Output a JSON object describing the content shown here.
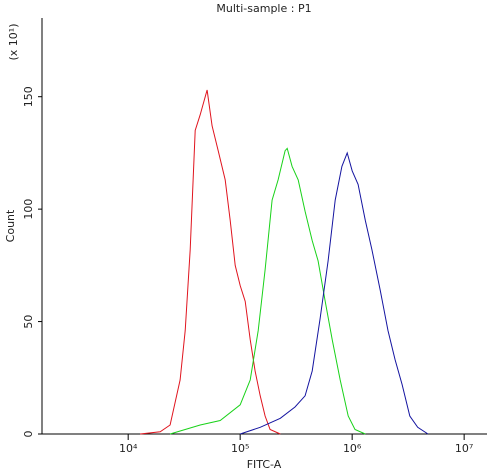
{
  "chart_data": {
    "type": "line",
    "title": "Multi-sample : P1",
    "y_multiplier": "(x 10¹)",
    "xlabel": "FITC-A",
    "ylabel": "Count",
    "xscale": "log",
    "xlim": [
      1700,
      16000000
    ],
    "ylim": [
      0,
      185
    ],
    "xticks": [
      {
        "value": 10000,
        "label": "10⁴"
      },
      {
        "value": 100000,
        "label": "10⁵"
      },
      {
        "value": 1000000,
        "label": "10⁶"
      },
      {
        "value": 10000000,
        "label": "10⁷"
      }
    ],
    "yticks": [
      0,
      50,
      100,
      150
    ],
    "series": [
      {
        "color": "#e0141e",
        "x": [
          12800,
          19300,
          23700,
          29100,
          32300,
          35800,
          39700,
          44000,
          50700,
          56200,
          63600,
          73500,
          81500,
          90200,
          100000,
          111000,
          123000,
          136000,
          151000,
          167000,
          185000,
          228000
        ],
        "values": [
          0,
          1,
          4,
          24,
          46,
          82,
          135,
          142,
          153,
          137,
          126,
          113,
          95,
          75,
          66,
          59,
          42,
          28,
          17,
          8,
          2,
          0
        ]
      },
      {
        "color": "#19d219",
        "x": [
          23700,
          44000,
          66300,
          100000,
          123000,
          145000,
          167000,
          193000,
          218000,
          252000,
          263000,
          291000,
          330000,
          380000,
          440000,
          497000,
          574000,
          663000,
          782000,
          921000,
          1060000,
          1310000
        ],
        "values": [
          0,
          4,
          6,
          13,
          24,
          46,
          73,
          104,
          113,
          126,
          127,
          119,
          113,
          99,
          86,
          77,
          59,
          42,
          24,
          8,
          2,
          0
        ]
      },
      {
        "color": "#1414a0",
        "x": [
          100000,
          151000,
          228000,
          309000,
          380000,
          440000,
          516000,
          610000,
          705000,
          810000,
          904000,
          1000000,
          1130000,
          1310000,
          1500000,
          1780000,
          2090000,
          2420000,
          2790000,
          3270000,
          3850000,
          4760000
        ],
        "values": [
          0,
          3,
          7,
          12,
          17,
          28,
          51,
          77,
          104,
          119,
          125,
          117,
          111,
          95,
          82,
          64,
          46,
          33,
          22,
          8,
          3,
          0
        ]
      }
    ]
  }
}
